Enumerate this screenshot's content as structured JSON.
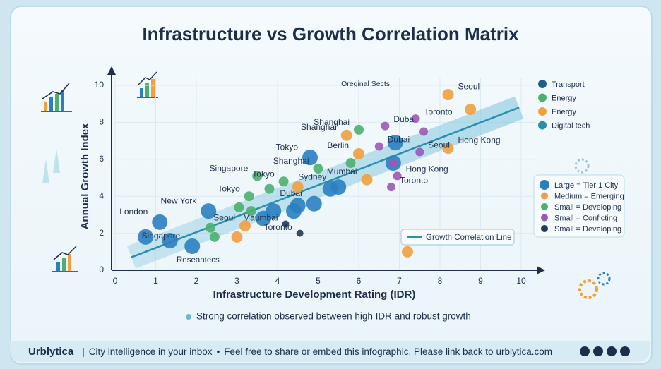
{
  "chart_data": {
    "type": "scatter",
    "title": "Infrastructure vs Growth Correlation Matrix",
    "x_label": "Infrastructure Development Rating (IDR)",
    "y_label": "Annual Growth Index",
    "xlim": [
      0,
      10
    ],
    "ylim": [
      0,
      10
    ],
    "xticks": [
      0,
      1,
      2,
      3,
      4,
      5,
      6,
      7,
      8,
      9,
      10
    ],
    "yticks": [
      0,
      2,
      4,
      6,
      8,
      10
    ],
    "grid": true,
    "series": [
      {
        "name": "Large = Tier 1 City",
        "color": "#2a7fc1",
        "x": [
          0.75,
          1.1,
          1.35,
          1.9,
          2.3,
          3.65,
          3.9,
          4.4,
          4.5,
          4.8,
          5.3,
          5.5,
          4.9,
          6.9,
          6.85
        ],
        "y": [
          1.8,
          2.6,
          1.6,
          1.3,
          3.2,
          2.8,
          3.2,
          3.2,
          3.5,
          6.1,
          4.4,
          4.5,
          3.6,
          6.9,
          5.8
        ],
        "labels": [
          null,
          "London",
          null,
          "Singapore",
          "New York",
          null,
          null,
          null,
          null,
          "Tokyo",
          null,
          "Sydney",
          "Dubai",
          null,
          null
        ]
      },
      {
        "name": "Medium = Emerging",
        "color": "#f0a040",
        "x": [
          3.2,
          4.5,
          6.2,
          6.0,
          5.7,
          8.2,
          8.75,
          8.2,
          7.2,
          3.0
        ],
        "y": [
          2.4,
          4.5,
          4.9,
          6.3,
          7.3,
          9.5,
          8.7,
          6.6,
          1.0,
          1.8
        ],
        "labels": [
          "Seoul",
          null,
          "Mumbai",
          "Berlin",
          "Shanghai",
          "Seoul",
          null,
          "Hong Kong",
          null,
          null
        ]
      },
      {
        "name": "Small = Developing",
        "color": "#4caf6e",
        "x": [
          2.35,
          2.45,
          3.05,
          3.3,
          3.35,
          3.8,
          3.5,
          4.15,
          5.0,
          6.0,
          5.8
        ],
        "y": [
          2.3,
          1.8,
          3.4,
          4.0,
          3.2,
          4.4,
          5.1,
          4.8,
          5.5,
          7.6,
          5.8
        ],
        "labels": [
          null,
          null,
          null,
          "Tokyo",
          null,
          null,
          "Singapore",
          "Tokyo",
          "Shanghai",
          "Shanghai",
          null
        ]
      },
      {
        "name": "Small = Conficting",
        "color": "#9b59b6",
        "x": [
          7.4,
          7.6,
          7.5,
          6.85,
          6.95,
          6.8,
          6.65,
          6.5
        ],
        "y": [
          8.2,
          7.5,
          6.4,
          5.8,
          5.1,
          4.5,
          7.8,
          6.7
        ],
        "labels": [
          "Toronto",
          null,
          "Seoul",
          null,
          "Hong Kong",
          "Toronto",
          "Dubai",
          "Dubai"
        ]
      },
      {
        "name": "Small = Developing",
        "color": "#1f3b5c",
        "x": [
          4.2,
          4.55
        ],
        "y": [
          2.5,
          2.0
        ],
        "labels": [
          "Maumbai",
          "Toronto"
        ]
      }
    ],
    "trend_line": {
      "name": "Growth Correlation Line",
      "color": "#2a8fae",
      "x": [
        0.4,
        9.95
      ],
      "y": [
        0.7,
        8.8
      ]
    },
    "icon_legend": [
      "Transport",
      "Energy",
      "Energy",
      "Digital tech"
    ],
    "source_note": "Oreginal Sects",
    "research_note": "Reseantecs",
    "footnote": "Strong correlation observed between high IDR and robust growth"
  },
  "footer": {
    "brand": "Urblytica",
    "tagline": "City intelligence in your inbox",
    "share_text": "Feel free to share or embed this infographic. Please link back to",
    "link": "urblytica.com"
  }
}
